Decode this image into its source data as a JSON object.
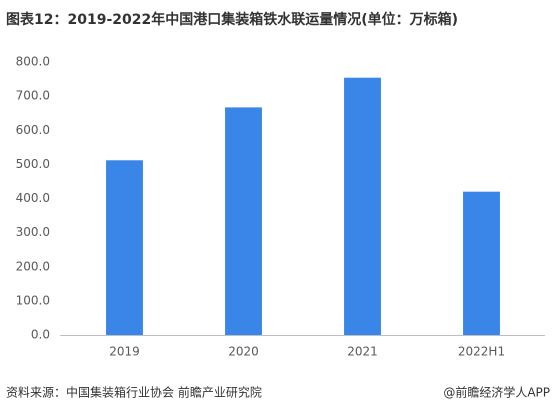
{
  "chart_data": {
    "type": "bar",
    "title": "图表12：2019-2022年中国港口集装箱铁水联运量情况(单位：万标箱)",
    "categories": [
      "2019",
      "2020",
      "2021",
      "2022H1"
    ],
    "values": [
      512,
      667,
      754,
      420
    ],
    "color": "#3a86e8",
    "ylim": [
      0,
      800
    ],
    "yticks": [
      {
        "value": 0,
        "label": "0.0"
      },
      {
        "value": 100,
        "label": "100.0"
      },
      {
        "value": 200,
        "label": "200.0"
      },
      {
        "value": 300,
        "label": "300.0"
      },
      {
        "value": 400,
        "label": "400.0"
      },
      {
        "value": 500,
        "label": "500.0"
      },
      {
        "value": 600,
        "label": "600.0"
      },
      {
        "value": 700,
        "label": "700.0"
      },
      {
        "value": 800,
        "label": "800.0"
      }
    ],
    "grid": false,
    "source": "资料来源：中国集装箱行业协会 前瞻产业研究院",
    "credit": "@前瞻经济学人APP"
  }
}
